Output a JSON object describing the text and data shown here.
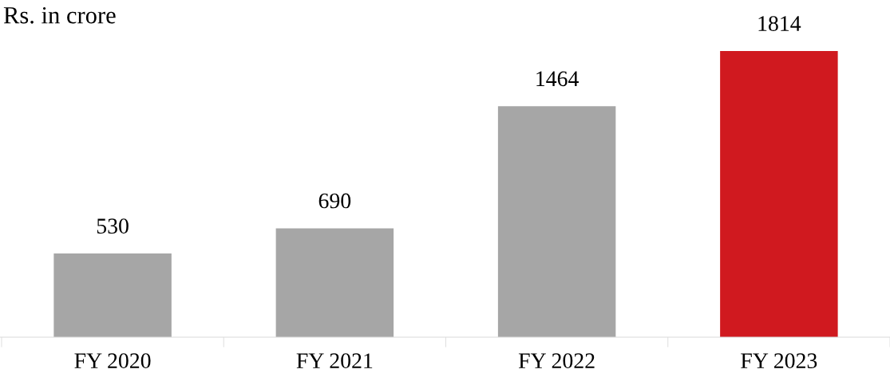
{
  "chart_data": {
    "type": "bar",
    "ylabel": "Rs. in crore",
    "categories": [
      "FY 2020",
      "FY 2021",
      "FY 2022",
      "FY 2023"
    ],
    "values": [
      530,
      690,
      1464,
      1814
    ],
    "colors": [
      "#a6a6a6",
      "#a6a6a6",
      "#a6a6a6",
      "#d0191f"
    ],
    "data_labels": true,
    "grid": false,
    "legend": false
  }
}
